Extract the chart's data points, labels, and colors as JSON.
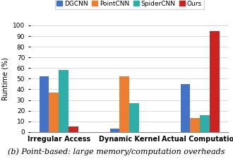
{
  "categories": [
    "Irregular Access",
    "Dynamic Kernel",
    "Actual Computation"
  ],
  "series": {
    "DGCNN": [
      52,
      3,
      45
    ],
    "PointCNN": [
      37,
      52,
      13
    ],
    "SpiderCNN": [
      58,
      27,
      16
    ],
    "Ours": [
      5,
      0,
      95
    ]
  },
  "colors": {
    "DGCNN": "#4472C4",
    "PointCNN": "#ED7D31",
    "SpiderCNN": "#2DAEA8",
    "Ours": "#CC2222"
  },
  "ylabel": "Runtime (%)",
  "ylim": [
    0,
    100
  ],
  "yticks": [
    0,
    10,
    20,
    30,
    40,
    50,
    60,
    70,
    80,
    90,
    100
  ],
  "caption": "(b) Point-based: large memory/computation overheads",
  "background_color": "#FFFFFF",
  "grid_color": "#CCCCCC",
  "group_width": 0.55,
  "legend_fontsize": 6.5,
  "ylabel_fontsize": 7,
  "tick_fontsize": 6.5,
  "xtick_fontsize": 7
}
